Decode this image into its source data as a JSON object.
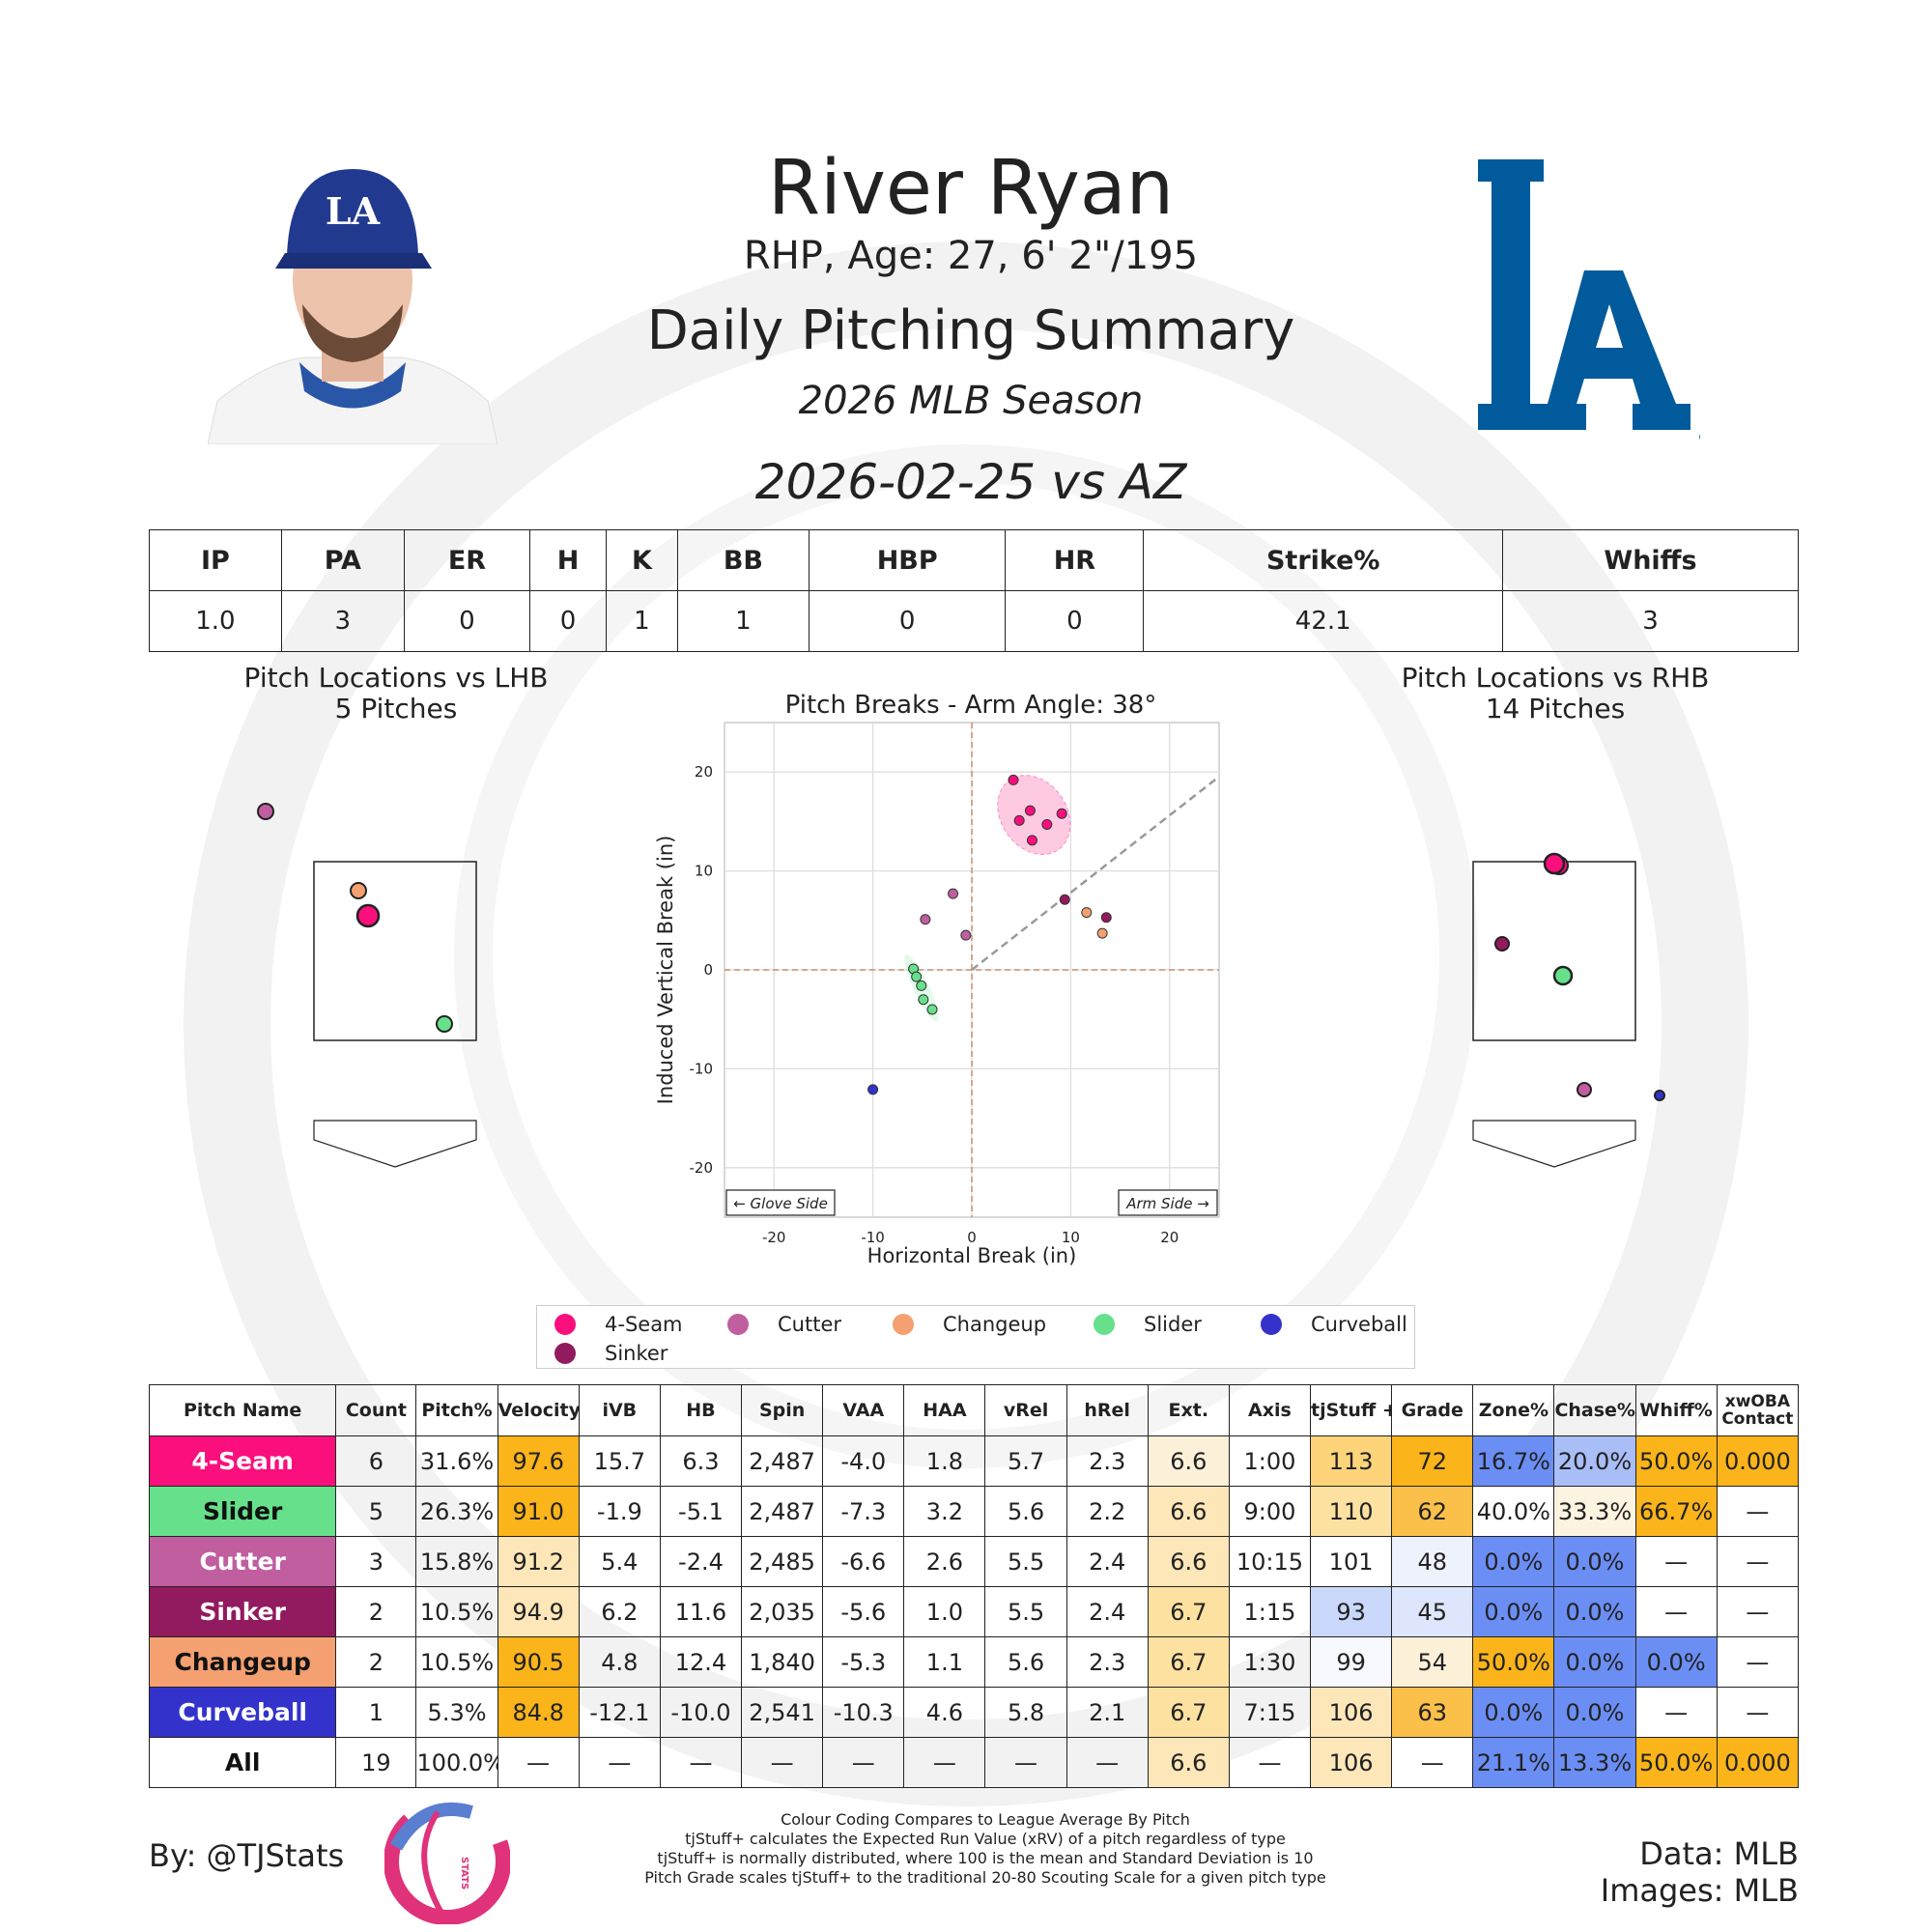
{
  "header": {
    "name": "River Ryan",
    "info": "RHP, Age: 27, 6' 2\"/195",
    "title": "Daily Pitching Summary",
    "season": "2026 MLB Season",
    "game": "2026-02-25 vs AZ",
    "team_logo_text": "LA"
  },
  "stat_line": {
    "headers": [
      "IP",
      "PA",
      "ER",
      "H",
      "K",
      "BB",
      "HBP",
      "HR",
      "Strike%",
      "Whiffs"
    ],
    "values": [
      "1.0",
      "3",
      "0",
      "0",
      "1",
      "1",
      "0",
      "0",
      "42.1",
      "3"
    ]
  },
  "colors": {
    "4-Seam": "#fb0f7d",
    "Cutter": "#c05ea0",
    "Changeup": "#f4a070",
    "Slider": "#66e08a",
    "Curveball": "#3333cc",
    "Sinker": "#921a5e"
  },
  "left_plot": {
    "title": "Pitch Locations vs LHB",
    "subtitle": "5 Pitches"
  },
  "right_plot": {
    "title": "Pitch Locations vs RHB",
    "subtitle": "14 Pitches"
  },
  "chart_data": {
    "type": "scatter",
    "title": "Pitch Breaks - Arm Angle: 38°",
    "xlabel": "Horizontal Break (in)",
    "ylabel": "Induced Vertical Break (in)",
    "xlim": [
      -25,
      25
    ],
    "ylim": [
      -25,
      25
    ],
    "xticks": [
      -20,
      -10,
      0,
      10,
      20
    ],
    "yticks": [
      20,
      10,
      0,
      -10,
      -20
    ],
    "grid": true,
    "glove_side_label": "← Glove Side",
    "arm_side_label": "Arm Side →",
    "series": [
      {
        "name": "4-Seam",
        "points": [
          [
            4.2,
            19.2
          ],
          [
            5.9,
            16.1
          ],
          [
            7.6,
            14.7
          ],
          [
            4.8,
            15.1
          ],
          [
            9.1,
            15.8
          ],
          [
            6.1,
            13.1
          ]
        ]
      },
      {
        "name": "Cutter",
        "points": [
          [
            -1.9,
            7.7
          ],
          [
            -4.7,
            5.1
          ],
          [
            -0.6,
            3.5
          ]
        ]
      },
      {
        "name": "Changeup",
        "points": [
          [
            11.6,
            5.8
          ],
          [
            13.2,
            3.7
          ]
        ]
      },
      {
        "name": "Slider",
        "points": [
          [
            -5.9,
            0.1
          ],
          [
            -5.6,
            -0.7
          ],
          [
            -5.1,
            -1.6
          ],
          [
            -4.9,
            -3.0
          ],
          [
            -4.0,
            -4.0
          ]
        ]
      },
      {
        "name": "Curveball",
        "points": [
          [
            -10.0,
            -12.1
          ]
        ]
      },
      {
        "name": "Sinker",
        "points": [
          [
            9.4,
            7.1
          ],
          [
            13.6,
            5.3
          ]
        ]
      }
    ]
  },
  "legend": [
    "4-Seam",
    "Cutter",
    "Changeup",
    "Slider",
    "Curveball",
    "Sinker"
  ],
  "pitch_table": {
    "headers": [
      "Pitch Name",
      "Count",
      "Pitch%",
      "Velocity",
      "iVB",
      "HB",
      "Spin",
      "VAA",
      "HAA",
      "vRel",
      "hRel",
      "Ext.",
      "Axis",
      "tjStuff +",
      "Grade",
      "Zone%",
      "Chase%",
      "Whiff%",
      "xwOBA Contact"
    ],
    "rows": [
      {
        "name": "4-Seam",
        "values": [
          "6",
          "31.6%",
          "97.6",
          "15.7",
          "6.3",
          "2,487",
          "-4.0",
          "1.8",
          "5.7",
          "2.3",
          "6.6",
          "1:00",
          "113",
          "72",
          "16.7%",
          "20.0%",
          "50.0%",
          "0.000"
        ]
      },
      {
        "name": "Slider",
        "values": [
          "5",
          "26.3%",
          "91.0",
          "-1.9",
          "-5.1",
          "2,487",
          "-7.3",
          "3.2",
          "5.6",
          "2.2",
          "6.6",
          "9:00",
          "110",
          "62",
          "40.0%",
          "33.3%",
          "66.7%",
          "—"
        ]
      },
      {
        "name": "Cutter",
        "values": [
          "3",
          "15.8%",
          "91.2",
          "5.4",
          "-2.4",
          "2,485",
          "-6.6",
          "2.6",
          "5.5",
          "2.4",
          "6.6",
          "10:15",
          "101",
          "48",
          "0.0%",
          "0.0%",
          "—",
          "—"
        ]
      },
      {
        "name": "Sinker",
        "values": [
          "2",
          "10.5%",
          "94.9",
          "6.2",
          "11.6",
          "2,035",
          "-5.6",
          "1.0",
          "5.5",
          "2.4",
          "6.7",
          "1:15",
          "93",
          "45",
          "0.0%",
          "0.0%",
          "—",
          "—"
        ]
      },
      {
        "name": "Changeup",
        "values": [
          "2",
          "10.5%",
          "90.5",
          "4.8",
          "12.4",
          "1,840",
          "-5.3",
          "1.1",
          "5.6",
          "2.3",
          "6.7",
          "1:30",
          "99",
          "54",
          "50.0%",
          "0.0%",
          "0.0%",
          "—"
        ]
      },
      {
        "name": "Curveball",
        "values": [
          "1",
          "5.3%",
          "84.8",
          "-12.1",
          "-10.0",
          "2,541",
          "-10.3",
          "4.6",
          "5.8",
          "2.1",
          "6.7",
          "7:15",
          "106",
          "63",
          "0.0%",
          "0.0%",
          "—",
          "—"
        ]
      },
      {
        "name": "All",
        "values": [
          "19",
          "100.0%",
          "—",
          "—",
          "—",
          "—",
          "—",
          "—",
          "—",
          "—",
          "6.6",
          "—",
          "106",
          "—",
          "21.1%",
          "13.3%",
          "50.0%",
          "0.000"
        ]
      }
    ]
  },
  "footer": {
    "byline": "By: @TJStats",
    "data_source": "Data: MLB",
    "images_source": "Images: MLB",
    "logo_text": "STATS",
    "notes": [
      "Colour Coding Compares to League Average By Pitch",
      "tjStuff+ calculates the Expected Run Value (xRV) of a pitch regardless of type",
      "tjStuff+ is normally distributed, where 100 is the mean and Standard Deviation is 10",
      "Pitch Grade scales tjStuff+ to the traditional 20-80 Scouting Scale for a given pitch type"
    ]
  }
}
